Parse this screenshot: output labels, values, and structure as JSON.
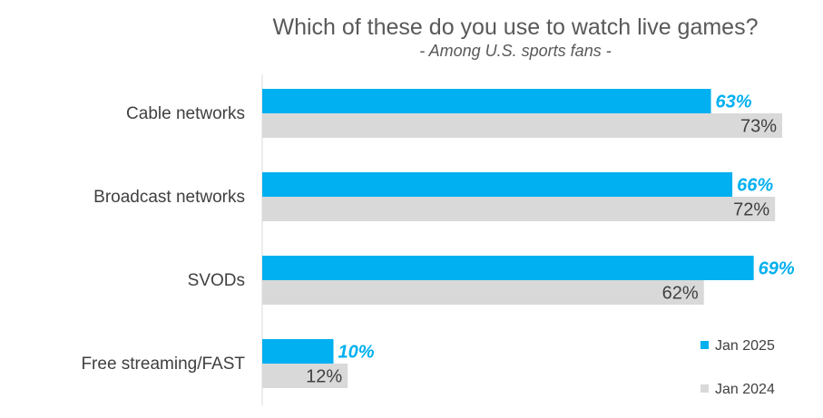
{
  "chart_data": {
    "type": "bar",
    "orientation": "horizontal",
    "title": "Which of these do you use to watch live games?",
    "subtitle": "- Among U.S. sports fans -",
    "categories": [
      "Cable networks",
      "Broadcast networks",
      "SVODs",
      "Free streaming/FAST"
    ],
    "series": [
      {
        "name": "Jan 2025",
        "values": [
          63,
          66,
          69,
          10
        ],
        "labels": [
          "63%",
          "66%",
          "69%",
          "10%"
        ],
        "color": "#00B0F0"
      },
      {
        "name": "Jan 2024",
        "values": [
          73,
          72,
          62,
          12
        ],
        "labels": [
          "73%",
          "72%",
          "62%",
          "12%"
        ],
        "color": "#D9D9D9"
      }
    ],
    "xlim": [
      0,
      80
    ],
    "grid": false,
    "legend_position": "bottom-right"
  }
}
